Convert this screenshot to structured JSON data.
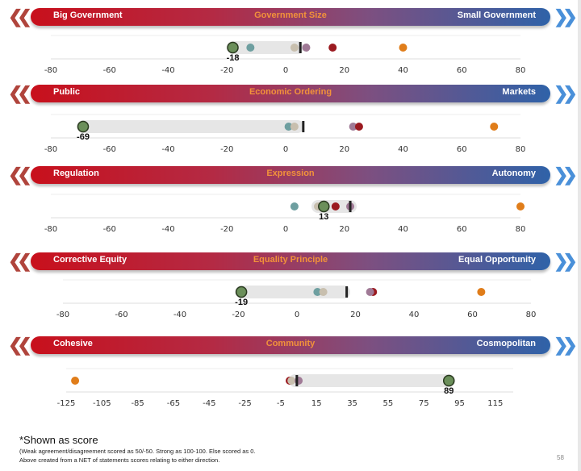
{
  "chart_data": [
    {
      "type": "scatter",
      "title": "Government Size",
      "left_label": "Big Government",
      "right_label": "Small Government",
      "xlim": [
        -80,
        80
      ],
      "ticks": [
        -80,
        -60,
        -40,
        -20,
        0,
        20,
        40,
        60,
        80
      ],
      "highlight_label": "-18",
      "range_band": [
        -18,
        4
      ],
      "mean_marker": 5,
      "points": [
        {
          "value": -18,
          "color": "#6b8f5a",
          "highlight": true
        },
        {
          "value": -12,
          "color": "#6e9fa0"
        },
        {
          "value": 3,
          "color": "#c8bfae"
        },
        {
          "value": 7,
          "color": "#a07a96"
        },
        {
          "value": 16,
          "color": "#9b1a20"
        },
        {
          "value": 40,
          "color": "#e07d1a"
        }
      ]
    },
    {
      "type": "scatter",
      "title": "Economic Ordering",
      "left_label": "Public",
      "right_label": "Markets",
      "xlim": [
        -80,
        80
      ],
      "ticks": [
        -80,
        -60,
        -40,
        -20,
        0,
        20,
        40,
        60,
        80
      ],
      "highlight_label": "-69",
      "range_band": [
        -69,
        4
      ],
      "mean_marker": 6,
      "points": [
        {
          "value": -69,
          "color": "#6b8f5a",
          "highlight": true
        },
        {
          "value": 1,
          "color": "#6e9fa0"
        },
        {
          "value": 3,
          "color": "#c8bfae"
        },
        {
          "value": 23,
          "color": "#a07a96"
        },
        {
          "value": 25,
          "color": "#9b1a20"
        },
        {
          "value": 71,
          "color": "#e07d1a"
        }
      ]
    },
    {
      "type": "scatter",
      "title": "Expression",
      "left_label": "Regulation",
      "right_label": "Autonomy",
      "xlim": [
        -80,
        80
      ],
      "ticks": [
        -80,
        -60,
        -40,
        -20,
        0,
        20,
        40,
        60,
        80
      ],
      "highlight_label": "13",
      "range_band": [
        11,
        22
      ],
      "mean_marker": 22,
      "points": [
        {
          "value": 3,
          "color": "#6e9fa0"
        },
        {
          "value": 11,
          "color": "#c8bfae"
        },
        {
          "value": 13,
          "color": "#6b8f5a",
          "highlight": true
        },
        {
          "value": 17,
          "color": "#9b1a20"
        },
        {
          "value": 22,
          "color": "#a07a96"
        },
        {
          "value": 80,
          "color": "#e07d1a"
        }
      ]
    },
    {
      "type": "scatter",
      "title": "Equality Principle",
      "left_label": "Corrective Equity",
      "right_label": "Equal Opportunity",
      "xlim": [
        -80,
        80
      ],
      "ticks": [
        -80,
        -60,
        -40,
        -20,
        0,
        20,
        40,
        60,
        80
      ],
      "highlight_label": "-19",
      "range_band": [
        -19,
        16
      ],
      "mean_marker": 17,
      "points": [
        {
          "value": -19,
          "color": "#6b8f5a",
          "highlight": true
        },
        {
          "value": 7,
          "color": "#6e9fa0"
        },
        {
          "value": 9,
          "color": "#c8bfae"
        },
        {
          "value": 26,
          "color": "#9b1a20"
        },
        {
          "value": 25,
          "color": "#a07a96"
        },
        {
          "value": 63,
          "color": "#e07d1a"
        }
      ]
    },
    {
      "type": "scatter",
      "title": "Community",
      "left_label": "Cohesive",
      "right_label": "Cosmopolitan",
      "xlim": [
        -125,
        125
      ],
      "ticks": [
        -125,
        -105,
        -85,
        -65,
        -45,
        -25,
        -5,
        15,
        35,
        55,
        75,
        95,
        115
      ],
      "highlight_label": "89",
      "range_band": [
        3,
        89
      ],
      "mean_marker": 4,
      "points": [
        {
          "value": -120,
          "color": "#e07d1a"
        },
        {
          "value": 0,
          "color": "#9b1a20"
        },
        {
          "value": 1,
          "color": "#c8bfae"
        },
        {
          "value": 5,
          "color": "#a07a96"
        },
        {
          "value": 89,
          "color": "#6b8f5a",
          "highlight": true
        }
      ]
    }
  ],
  "footnote": {
    "title": "*Shown as score",
    "line1": "(Weak agreement/disagreement scored as 50/-50. Strong as 100-100. Else scored as 0.",
    "line2": "Above created from a NET of statements scores relating to either direction."
  },
  "page_number": "58",
  "icons": {
    "left": "double-chevron-left-icon",
    "right": "double-chevron-right-icon"
  }
}
